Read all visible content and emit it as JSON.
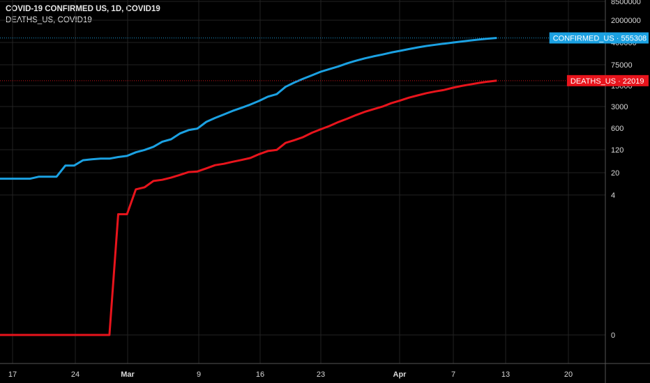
{
  "header": {
    "title": "COVID-19 CONFIRMED US, 1D, COVID19",
    "subtitle": "DEATHS_US, COVID19"
  },
  "chart_data": {
    "type": "line",
    "scale": "log",
    "grid": true,
    "background": "#000000",
    "y_tick_labels": [
      "8500000",
      "2000000",
      "400000",
      "75000",
      "15000",
      "3000",
      "600",
      "120",
      "20",
      "4",
      "0"
    ],
    "x_tick_labels": [
      {
        "label": "17"
      },
      {
        "label": "24"
      },
      {
        "label": "Mar",
        "bold": true
      },
      {
        "label": "9"
      },
      {
        "label": "16"
      },
      {
        "label": "23"
      },
      {
        "label": "Apr",
        "bold": true
      },
      {
        "label": "7"
      },
      {
        "label": "13"
      },
      {
        "label": "20"
      }
    ],
    "series": [
      {
        "name": "CONFIRMED_US",
        "color": "#1ba1e2",
        "last_value_label": "CONFIRMED_US · 555308",
        "x": [
          "2020-02-15",
          "2020-02-16",
          "2020-02-17",
          "2020-02-18",
          "2020-02-19",
          "2020-02-20",
          "2020-02-21",
          "2020-02-22",
          "2020-02-23",
          "2020-02-24",
          "2020-02-25",
          "2020-02-26",
          "2020-02-27",
          "2020-02-28",
          "2020-02-29",
          "2020-03-01",
          "2020-03-02",
          "2020-03-03",
          "2020-03-04",
          "2020-03-05",
          "2020-03-06",
          "2020-03-07",
          "2020-03-08",
          "2020-03-09",
          "2020-03-10",
          "2020-03-11",
          "2020-03-12",
          "2020-03-13",
          "2020-03-14",
          "2020-03-15",
          "2020-03-16",
          "2020-03-17",
          "2020-03-18",
          "2020-03-19",
          "2020-03-20",
          "2020-03-21",
          "2020-03-22",
          "2020-03-23",
          "2020-03-24",
          "2020-03-25",
          "2020-03-26",
          "2020-03-27",
          "2020-03-28",
          "2020-03-29",
          "2020-03-30",
          "2020-03-31",
          "2020-04-01",
          "2020-04-02",
          "2020-04-03",
          "2020-04-04",
          "2020-04-05",
          "2020-04-06",
          "2020-04-07",
          "2020-04-08",
          "2020-04-09",
          "2020-04-10",
          "2020-04-11",
          "2020-04-12"
        ],
        "values": [
          13,
          13,
          13,
          13,
          13,
          15,
          15,
          15,
          35,
          35,
          53,
          57,
          60,
          60,
          68,
          74,
          98,
          118,
          149,
          217,
          262,
          402,
          518,
          583,
          959,
          1281,
          1663,
          2179,
          2726,
          3499,
          4632,
          6421,
          7786,
          13680,
          19101,
          25493,
          33276,
          43847,
          53740,
          65778,
          83836,
          101657,
          121465,
          140909,
          161831,
          188172,
          213242,
          243622,
          275367,
          308650,
          336802,
          366317,
          397121,
          428654,
          462780,
          496535,
          526396,
          555308
        ]
      },
      {
        "name": "DEATHS_US",
        "color": "#e8141c",
        "last_value_label": "DEATHS_US · 22019",
        "x": [
          "2020-02-15",
          "2020-02-16",
          "2020-02-17",
          "2020-02-18",
          "2020-02-19",
          "2020-02-20",
          "2020-02-21",
          "2020-02-22",
          "2020-02-23",
          "2020-02-24",
          "2020-02-25",
          "2020-02-26",
          "2020-02-27",
          "2020-02-28",
          "2020-02-29",
          "2020-03-01",
          "2020-03-02",
          "2020-03-03",
          "2020-03-04",
          "2020-03-05",
          "2020-03-06",
          "2020-03-07",
          "2020-03-08",
          "2020-03-09",
          "2020-03-10",
          "2020-03-11",
          "2020-03-12",
          "2020-03-13",
          "2020-03-14",
          "2020-03-15",
          "2020-03-16",
          "2020-03-17",
          "2020-03-18",
          "2020-03-19",
          "2020-03-20",
          "2020-03-21",
          "2020-03-22",
          "2020-03-23",
          "2020-03-24",
          "2020-03-25",
          "2020-03-26",
          "2020-03-27",
          "2020-03-28",
          "2020-03-29",
          "2020-03-30",
          "2020-03-31",
          "2020-04-01",
          "2020-04-02",
          "2020-04-03",
          "2020-04-04",
          "2020-04-05",
          "2020-04-06",
          "2020-04-07",
          "2020-04-08",
          "2020-04-09",
          "2020-04-10",
          "2020-04-11",
          "2020-04-12"
        ],
        "values": [
          0,
          0,
          0,
          0,
          0,
          0,
          0,
          0,
          0,
          0,
          0,
          0,
          0,
          0,
          1,
          1,
          6,
          7,
          11,
          12,
          14,
          17,
          21,
          22,
          28,
          36,
          40,
          47,
          54,
          63,
          85,
          108,
          118,
          200,
          244,
          307,
          427,
          552,
          706,
          942,
          1209,
          1581,
          2026,
          2467,
          2978,
          3873,
          4757,
          5926,
          7087,
          8407,
          9619,
          10783,
          12798,
          14695,
          16478,
          18586,
          20463,
          22019
        ]
      }
    ]
  }
}
